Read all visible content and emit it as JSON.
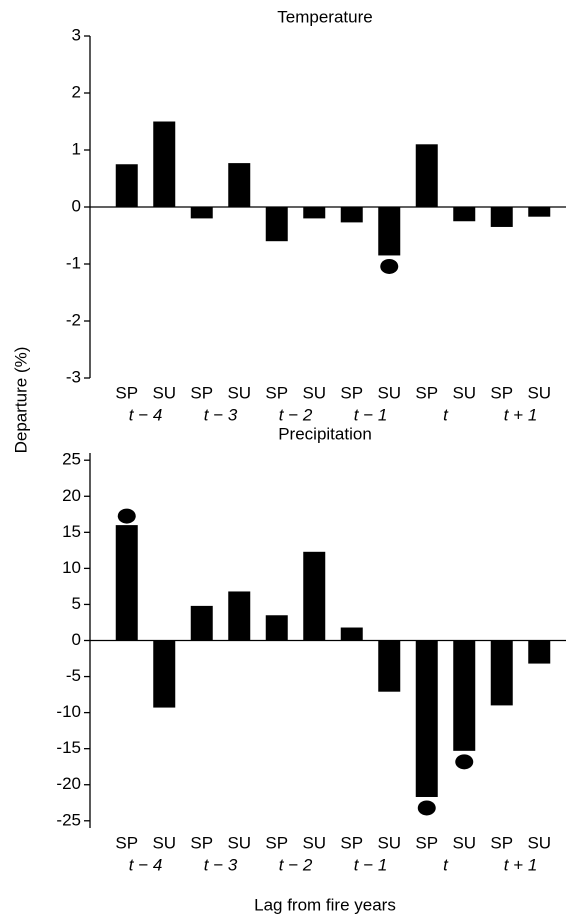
{
  "ylabel": "Departure (%)",
  "xlabel": "Lag from fire years",
  "chart_data": [
    {
      "type": "bar",
      "title": "Temperature",
      "categories": [
        "SP",
        "SU",
        "SP",
        "SU",
        "SP",
        "SU",
        "SP",
        "SU",
        "SP",
        "SU",
        "SP",
        "SU"
      ],
      "groups": [
        "t − 4",
        "t − 3",
        "t − 2",
        "t − 1",
        "t",
        "t + 1"
      ],
      "values": [
        0.75,
        1.5,
        -0.2,
        0.77,
        -0.6,
        -0.2,
        -0.27,
        -0.85,
        1.1,
        -0.25,
        -0.35,
        -0.17
      ],
      "significant": [
        false,
        false,
        false,
        false,
        false,
        false,
        false,
        true,
        false,
        false,
        false,
        false
      ],
      "color": "#000000",
      "ylim": [
        -3,
        3
      ],
      "yticks": [
        -3,
        -2,
        -1,
        0,
        1,
        2,
        3
      ]
    },
    {
      "type": "bar",
      "title": "Precipitation",
      "categories": [
        "SP",
        "SU",
        "SP",
        "SU",
        "SP",
        "SU",
        "SP",
        "SU",
        "SP",
        "SU",
        "SP",
        "SU"
      ],
      "groups": [
        "t − 4",
        "t − 3",
        "t − 2",
        "t − 1",
        "t",
        "t + 1"
      ],
      "values": [
        16,
        -9.3,
        4.8,
        6.8,
        3.5,
        12.3,
        1.8,
        -7.1,
        -21.7,
        -15.3,
        -9,
        -3.2
      ],
      "significant": [
        true,
        false,
        false,
        false,
        false,
        false,
        false,
        false,
        true,
        true,
        false,
        false
      ],
      "color": "#000000",
      "ylim": [
        -26,
        26
      ],
      "yticks": [
        -25,
        -20,
        -15,
        -10,
        -5,
        0,
        5,
        10,
        15,
        20,
        25
      ]
    }
  ]
}
